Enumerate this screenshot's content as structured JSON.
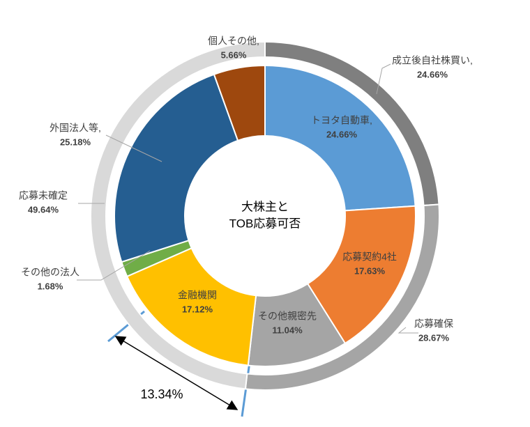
{
  "chart_data": {
    "type": "donut",
    "center_label": [
      "大株主と",
      "TOB応募可否"
    ],
    "categories": [
      "トヨタ自動車,",
      "応募契約4社",
      "その他親密先",
      "金融機関",
      "その他の法人",
      "外国法人等,",
      "個人その他,"
    ],
    "values": [
      24.66,
      17.63,
      11.04,
      17.12,
      1.68,
      25.18,
      5.66
    ],
    "value_labels": [
      "24.66%",
      "17.63%",
      "11.04%",
      "17.12%",
      "1.68%",
      "25.18%",
      "5.66%"
    ],
    "colors": [
      "#5b9bd5",
      "#ed7d31",
      "#a5a5a5",
      "#ffc000",
      "#70ad47",
      "#255e91",
      "#9e480e"
    ],
    "outer": {
      "categories": [
        "成立後自社株買い,",
        "応募確保",
        "応募未確定"
      ],
      "values": [
        24.66,
        28.67,
        49.64
      ],
      "value_labels": [
        "24.66%",
        "28.67%",
        "49.64%"
      ],
      "colors": [
        "#7f7f7f",
        "#a5a5a5",
        "#d9d9d9"
      ]
    },
    "annotation": "13.34%"
  }
}
